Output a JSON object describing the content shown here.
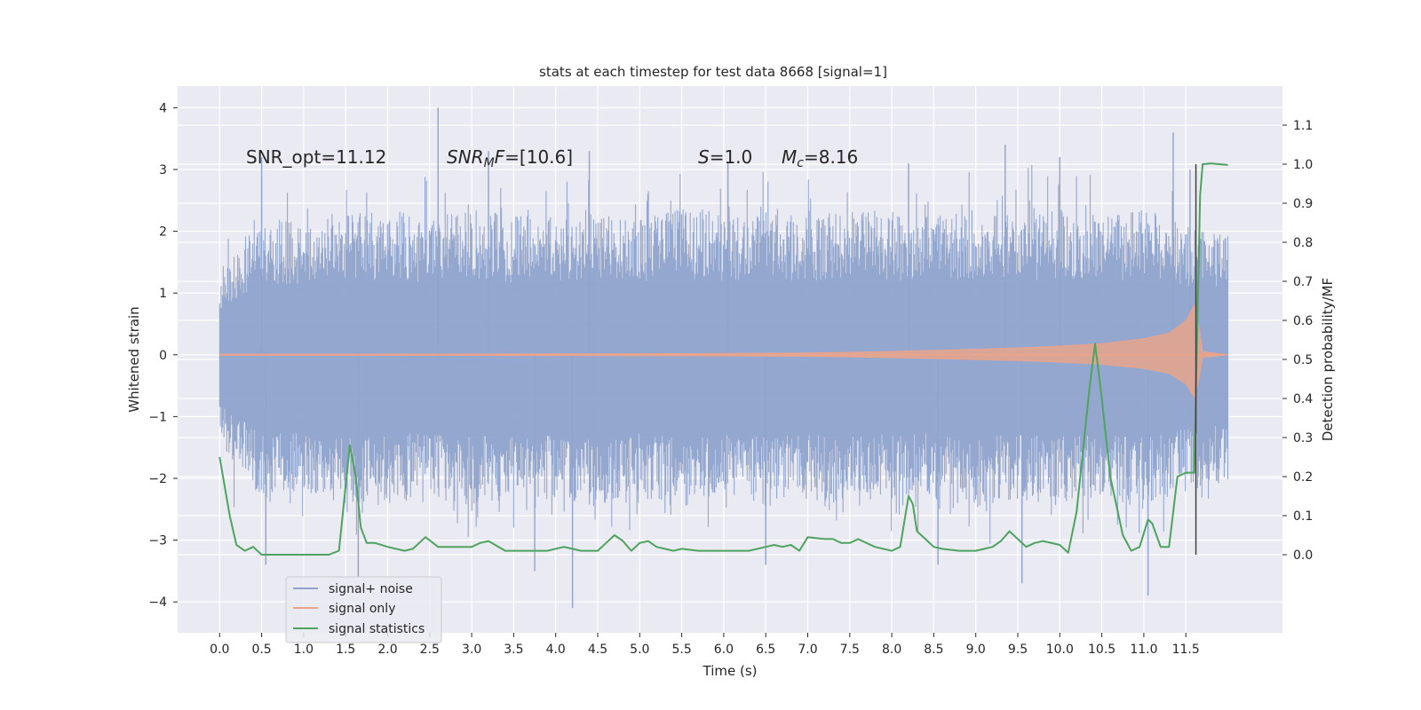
{
  "chart_data": {
    "type": "line",
    "title": "stats at each timestep for test data 8668 [signal=1]",
    "xlabel": "Time (s)",
    "ylabel_left": "Whitened strain",
    "ylabel_right": "Detection probability/MF",
    "xlim": [
      -0.5,
      12.65
    ],
    "ylim_left": [
      -4.5,
      4.35
    ],
    "ylim_right": [
      -0.2,
      1.2
    ],
    "x_ticks": [
      0.0,
      0.5,
      1.0,
      1.5,
      2.0,
      2.5,
      3.0,
      3.5,
      4.0,
      4.5,
      5.0,
      5.5,
      6.0,
      6.5,
      7.0,
      7.5,
      8.0,
      8.5,
      9.0,
      9.5,
      10.0,
      10.5,
      11.0,
      11.5
    ],
    "x_tick_labels": [
      "0.0",
      "0.5",
      "1.0",
      "1.5",
      "2.0",
      "2.5",
      "3.0",
      "3.5",
      "4.0",
      "4.5",
      "5.0",
      "5.5",
      "6.0",
      "6.5",
      "7.0",
      "7.5",
      "8.0",
      "8.5",
      "9.0",
      "9.5",
      "10.0",
      "10.5",
      "11.0",
      "11.5"
    ],
    "y_left_ticks": [
      4,
      3,
      2,
      1,
      0,
      -1,
      -2,
      -3,
      -4
    ],
    "y_left_tick_labels": [
      "4",
      "3",
      "2",
      "1",
      "0",
      "−1",
      "−2",
      "−3",
      "−4"
    ],
    "y_right_ticks": [
      1.1,
      1.0,
      0.9,
      0.8,
      0.7,
      0.6,
      0.5,
      0.4,
      0.3,
      0.2,
      0.1,
      0.0
    ],
    "y_right_tick_labels": [
      "1.1",
      "1.0",
      "0.9",
      "0.8",
      "0.7",
      "0.6",
      "0.5",
      "0.4",
      "0.3",
      "0.2",
      "0.1",
      "0.0"
    ],
    "grid": true,
    "legend_position": "lower-left",
    "annotations": {
      "snr_opt": "SNR_opt=11.12",
      "snr_mf_italic": "SNR",
      "snr_mf_sub": "M",
      "snr_mf_italic2": "F",
      "snr_mf_value": "=[10.6]",
      "s_label": "S",
      "s_value": "=1.0",
      "mc_label": "M",
      "mc_sub": "c",
      "mc_value": "=8.16"
    },
    "series": [
      {
        "name": "signal+ noise",
        "axis": "left",
        "color": "#8fa3cc",
        "x_start": 0.0,
        "x_end": 12.0,
        "typical_upper": [
          1.1,
          1.8,
          1.7,
          1.9,
          1.8,
          1.8,
          1.9,
          1.8,
          1.8,
          1.9,
          1.8,
          1.9,
          1.8,
          1.9,
          1.8,
          1.9,
          1.8,
          1.8,
          1.9,
          1.8,
          1.9,
          1.8,
          1.9,
          1.7,
          1.6
        ],
        "peaks_up": [
          [
            0.5,
            3.2
          ],
          [
            2.6,
            4.0
          ],
          [
            3.2,
            3.3
          ],
          [
            4.4,
            3.3
          ],
          [
            6.05,
            3.1
          ],
          [
            8.2,
            3.1
          ],
          [
            9.35,
            3.4
          ],
          [
            10.0,
            3.2
          ],
          [
            11.35,
            3.6
          ],
          [
            11.55,
            3.0
          ]
        ],
        "peaks_down": [
          [
            0.55,
            -3.4
          ],
          [
            1.65,
            -3.6
          ],
          [
            3.75,
            -3.5
          ],
          [
            4.2,
            -4.1
          ],
          [
            6.5,
            -3.4
          ],
          [
            8.55,
            -3.4
          ],
          [
            9.55,
            -3.7
          ],
          [
            11.05,
            -3.9
          ]
        ]
      },
      {
        "name": "signal only",
        "axis": "left",
        "color": "#e8a48c",
        "amplitude_x": [
          0.0,
          2.0,
          4.0,
          6.0,
          7.0,
          7.5,
          8.0,
          8.5,
          9.0,
          9.5,
          10.0,
          10.5,
          11.0,
          11.3,
          11.5,
          11.6,
          11.65,
          11.7,
          12.0
        ],
        "amplitude_y": [
          0.01,
          0.01,
          0.015,
          0.02,
          0.03,
          0.04,
          0.055,
          0.07,
          0.09,
          0.11,
          0.14,
          0.18,
          0.26,
          0.35,
          0.55,
          0.8,
          0.5,
          0.05,
          0.0
        ]
      },
      {
        "name": "signal statistics",
        "axis": "right",
        "color": "#4ea35f",
        "x": [
          0.0,
          0.12,
          0.2,
          0.3,
          0.4,
          0.5,
          0.7,
          0.9,
          1.1,
          1.3,
          1.42,
          1.55,
          1.62,
          1.68,
          1.75,
          1.85,
          2.0,
          2.2,
          2.3,
          2.45,
          2.6,
          2.8,
          3.0,
          3.1,
          3.2,
          3.4,
          3.6,
          3.8,
          3.9,
          4.0,
          4.1,
          4.3,
          4.5,
          4.6,
          4.7,
          4.8,
          4.9,
          5.0,
          5.1,
          5.2,
          5.4,
          5.5,
          5.7,
          5.9,
          6.1,
          6.3,
          6.5,
          6.6,
          6.7,
          6.8,
          6.9,
          7.0,
          7.2,
          7.3,
          7.4,
          7.5,
          7.6,
          7.7,
          7.8,
          8.0,
          8.1,
          8.2,
          8.25,
          8.3,
          8.4,
          8.5,
          8.6,
          8.8,
          9.0,
          9.2,
          9.3,
          9.4,
          9.5,
          9.6,
          9.7,
          9.8,
          10.0,
          10.1,
          10.2,
          10.35,
          10.42,
          10.5,
          10.6,
          10.75,
          10.85,
          10.95,
          11.05,
          11.1,
          11.2,
          11.3,
          11.4,
          11.5,
          11.6,
          11.67,
          11.7,
          11.8,
          12.0
        ],
        "y": [
          0.25,
          0.1,
          0.025,
          0.01,
          0.02,
          0.0,
          0.0,
          0.0,
          0.0,
          0.0,
          0.01,
          0.28,
          0.2,
          0.07,
          0.03,
          0.03,
          0.02,
          0.01,
          0.015,
          0.045,
          0.02,
          0.02,
          0.02,
          0.03,
          0.035,
          0.01,
          0.01,
          0.01,
          0.01,
          0.015,
          0.02,
          0.01,
          0.01,
          0.03,
          0.05,
          0.035,
          0.01,
          0.03,
          0.035,
          0.02,
          0.01,
          0.015,
          0.01,
          0.01,
          0.01,
          0.01,
          0.02,
          0.025,
          0.02,
          0.025,
          0.01,
          0.045,
          0.04,
          0.04,
          0.03,
          0.03,
          0.04,
          0.03,
          0.02,
          0.01,
          0.02,
          0.15,
          0.13,
          0.06,
          0.04,
          0.02,
          0.015,
          0.01,
          0.01,
          0.02,
          0.035,
          0.06,
          0.04,
          0.02,
          0.03,
          0.035,
          0.025,
          0.005,
          0.11,
          0.42,
          0.54,
          0.4,
          0.2,
          0.05,
          0.01,
          0.02,
          0.09,
          0.08,
          0.02,
          0.02,
          0.2,
          0.21,
          0.21,
          0.92,
          1.0,
          1.002,
          0.998
        ]
      }
    ],
    "vertical_marker": {
      "x": 11.62,
      "y_top": 1.0,
      "y_bottom": 0.0,
      "color": "#404040"
    }
  }
}
